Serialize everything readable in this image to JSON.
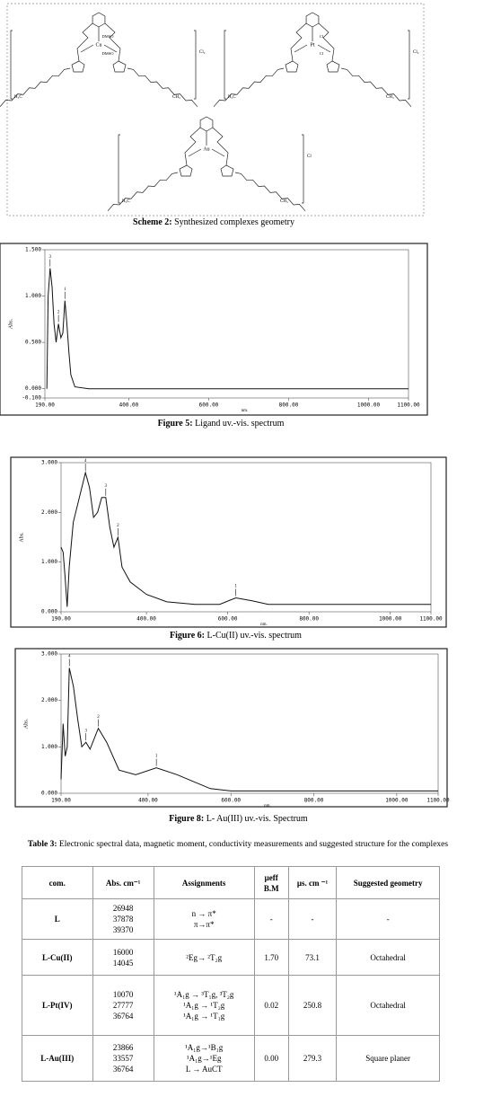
{
  "scheme": {
    "caption_label": "Scheme 2:",
    "caption": " Synthesized complexes geometry",
    "structures": [
      {
        "metal": "Cu",
        "axial": [
          "DMSO",
          "DMSO"
        ],
        "counterion": "Cl₂",
        "left_end": "H₃C",
        "right_end": "CH₃"
      },
      {
        "metal": "Pt",
        "axial": [
          "Cl",
          "Cl"
        ],
        "counterion": "Cl₂",
        "left_end": "H₃C",
        "right_end": "CH₃"
      },
      {
        "metal": "Au",
        "axial": [],
        "counterion": "Cl",
        "left_end": "H₃C",
        "right_end": "CH₃"
      }
    ]
  },
  "figures": [
    {
      "caption_label": "Figure 5:",
      "caption": " Ligand uv.-vis. spectrum",
      "y_label": "Abs.",
      "x_label": "nm.",
      "xlim": [
        190,
        1100
      ],
      "ylim": [
        -0.1,
        1.5
      ],
      "xticks": [
        {
          "value": 190,
          "label": "190.00"
        },
        {
          "value": 400,
          "label": "400.00"
        },
        {
          "value": 600,
          "label": "600.00"
        },
        {
          "value": 800,
          "label": "800.00"
        },
        {
          "value": 1000,
          "label": "1000.00"
        },
        {
          "value": 1100,
          "label": "1100.00"
        }
      ],
      "yticks": [
        {
          "value": 1.5,
          "label": "1.500"
        },
        {
          "value": 1,
          "label": "1.000"
        },
        {
          "value": 0.5,
          "label": "0.500"
        },
        {
          "value": 0,
          "label": "0.000"
        },
        {
          "value": -0.1,
          "label": "-0.100"
        }
      ],
      "x": [
        195,
        198,
        203,
        208,
        213,
        218,
        224,
        230,
        235,
        240,
        245,
        250,
        255,
        265,
        300,
        1100
      ],
      "values": [
        0,
        1,
        1.3,
        1.1,
        0.7,
        0.5,
        0.7,
        0.55,
        0.6,
        0.95,
        0.7,
        0.4,
        0.15,
        0.02,
        0,
        0
      ],
      "peaks": [
        {
          "label": "3",
          "x": 203,
          "value": 1.3
        },
        {
          "label": "2",
          "x": 224,
          "value": 0.7
        },
        {
          "label": "1",
          "x": 240,
          "value": 0.95
        }
      ]
    },
    {
      "caption_label": "Figure 6:",
      "caption": " L-Cu(II) uv.-vis. spectrum",
      "y_label": "Abs.",
      "x_label": "nm.",
      "xlim": [
        190,
        1100
      ],
      "ylim": [
        0,
        3
      ],
      "xticks": [
        {
          "value": 190,
          "label": "190.00"
        },
        {
          "value": 400,
          "label": "400.00"
        },
        {
          "value": 600,
          "label": "600.00"
        },
        {
          "value": 800,
          "label": "800.00"
        },
        {
          "value": 1000,
          "label": "1000.00"
        },
        {
          "value": 1100,
          "label": "1100.00"
        }
      ],
      "yticks": [
        {
          "value": 3,
          "label": "3.000"
        },
        {
          "value": 2,
          "label": "2.000"
        },
        {
          "value": 1,
          "label": "1.000"
        },
        {
          "value": 0,
          "label": "0.000"
        }
      ],
      "x": [
        190,
        195,
        200,
        205,
        210,
        220,
        235,
        250,
        260,
        270,
        280,
        290,
        300,
        310,
        320,
        330,
        340,
        360,
        400,
        450,
        520,
        580,
        620,
        660,
        700,
        1100
      ],
      "values": [
        1.3,
        1.2,
        0.7,
        0.1,
        0.9,
        1.8,
        2.3,
        2.8,
        2.5,
        1.9,
        2,
        2.3,
        2.3,
        1.7,
        1.3,
        1.5,
        0.9,
        0.6,
        0.35,
        0.2,
        0.15,
        0.15,
        0.28,
        0.22,
        0.15,
        0.15
      ],
      "peaks": [
        {
          "label": "4",
          "x": 250,
          "value": 2.8
        },
        {
          "label": "3",
          "x": 300,
          "value": 2.3
        },
        {
          "label": "2",
          "x": 330,
          "value": 1.5
        },
        {
          "label": "1",
          "x": 620,
          "value": 0.28
        }
      ]
    },
    {
      "caption_label": "Figure 8:",
      "caption": " L- Au(III) uv.-vis. Spectrum",
      "y_label": "Abs.",
      "x_label": "nm.",
      "xlim": [
        190,
        1100
      ],
      "ylim": [
        0,
        3
      ],
      "xticks": [
        {
          "value": 190,
          "label": "190.00"
        },
        {
          "value": 400,
          "label": "400.00"
        },
        {
          "value": 600,
          "label": "600.00"
        },
        {
          "value": 800,
          "label": "800.00"
        },
        {
          "value": 1000,
          "label": "1000.00"
        },
        {
          "value": 1100,
          "label": "1100.00"
        }
      ],
      "yticks": [
        {
          "value": 3,
          "label": "3.000"
        },
        {
          "value": 2,
          "label": "2.000"
        },
        {
          "value": 1,
          "label": "1.000"
        },
        {
          "value": 0,
          "label": "0.000"
        }
      ],
      "x": [
        190,
        195,
        200,
        205,
        210,
        220,
        230,
        240,
        250,
        260,
        280,
        300,
        330,
        370,
        420,
        470,
        550,
        600,
        1100
      ],
      "values": [
        0.3,
        1.5,
        0.8,
        1,
        2.7,
        2.3,
        1.6,
        1,
        1.1,
        0.95,
        1.4,
        1.1,
        0.5,
        0.4,
        0.55,
        0.4,
        0.1,
        0.05,
        0.05
      ],
      "peaks": [
        {
          "label": "4",
          "x": 210,
          "value": 2.7
        },
        {
          "label": "3",
          "x": 250,
          "value": 1.1
        },
        {
          "label": "2",
          "x": 280,
          "value": 1.4
        },
        {
          "label": "1",
          "x": 420,
          "value": 0.55
        }
      ]
    }
  ],
  "table": {
    "title_label": "Table 3:",
    "title": " Electronic spectral data, magnetic moment, conductivity measurements and suggested structure for the complexes",
    "header": [
      [
        "com."
      ],
      [
        "Abs. cm⁻¹"
      ],
      [
        "Assignments"
      ],
      [
        "μeff",
        "B.M"
      ],
      [
        "μs. cm ⁻¹"
      ],
      [
        "Suggested geometry"
      ]
    ],
    "rows": [
      [
        [
          "L"
        ],
        [
          "26948",
          "37878",
          "39370"
        ],
        [
          "n → π*",
          "π→π*"
        ],
        [
          "-"
        ],
        [
          "-"
        ],
        [
          "-"
        ]
      ],
      [
        [
          "L-Cu(II)"
        ],
        [
          "16000",
          "14045"
        ],
        [
          "²Eg→ ²T₂g"
        ],
        [
          "1.70"
        ],
        [
          "73.1"
        ],
        [
          "Octahedral"
        ]
      ],
      [
        [
          "L-Pt(IV)"
        ],
        [
          "10070",
          "27777",
          "36764"
        ],
        [
          "¹A₁g → ³T₁g, ³T₂g",
          "¹A₁g → ¹T₂g",
          "¹A₁g → ¹T₁g"
        ],
        [
          "0.02"
        ],
        [
          "250.8"
        ],
        [
          "Octahedral"
        ]
      ],
      [
        [
          "L-Au(III)"
        ],
        [
          "23866",
          "33557",
          "36764"
        ],
        [
          "¹A₁g→¹B₁g",
          "¹A₁g→¹Eg",
          "L → AuCT"
        ],
        [
          "0.00"
        ],
        [
          "279.3"
        ],
        [
          "Square planer"
        ]
      ]
    ]
  }
}
